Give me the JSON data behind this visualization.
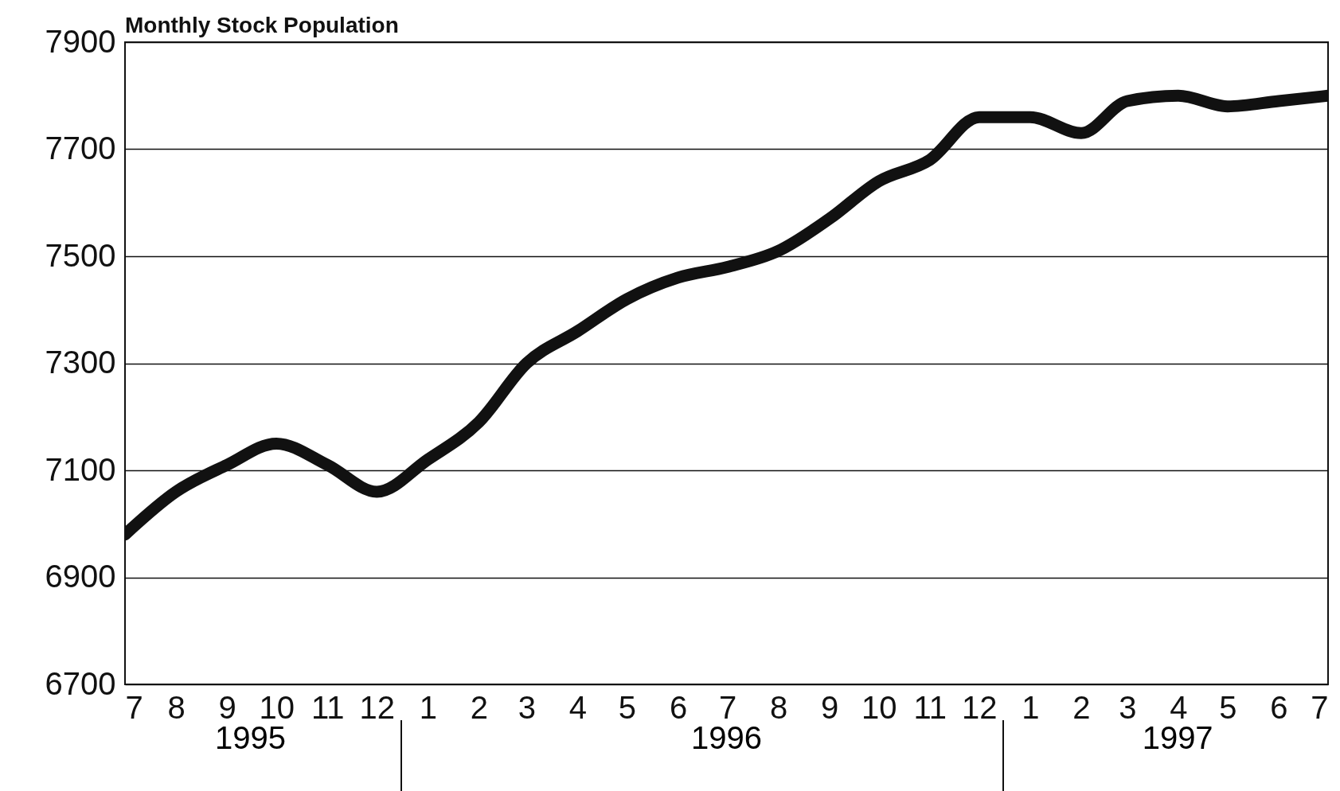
{
  "chart_data": {
    "type": "line",
    "title": "Monthly Stock Population",
    "x": [
      "1995-07",
      "1995-08",
      "1995-09",
      "1995-10",
      "1995-11",
      "1995-12",
      "1996-01",
      "1996-02",
      "1996-03",
      "1996-04",
      "1996-05",
      "1996-06",
      "1996-07",
      "1996-08",
      "1996-09",
      "1996-10",
      "1996-11",
      "1996-12",
      "1997-01",
      "1997-02",
      "1997-03",
      "1997-04",
      "1997-05",
      "1997-06",
      "1997-07"
    ],
    "series": [
      {
        "color": "#111111",
        "values": [
          6980,
          7060,
          7110,
          7150,
          7110,
          7060,
          7120,
          7190,
          7300,
          7360,
          7420,
          7460,
          7480,
          7510,
          7570,
          7640,
          7680,
          7760,
          7760,
          7730,
          7790,
          7800,
          7780,
          7790,
          7800
        ]
      }
    ],
    "xlim": [
      "1995-07",
      "1997-07"
    ],
    "xticks": [
      {
        "value": "1995-07",
        "label": "7"
      },
      {
        "value": "1995-08",
        "label": "8"
      },
      {
        "value": "1995-09",
        "label": "9"
      },
      {
        "value": "1995-10",
        "label": "10"
      },
      {
        "value": "1995-11",
        "label": "11"
      },
      {
        "value": "1995-12",
        "label": "12"
      },
      {
        "value": "1996-01",
        "label": "1"
      },
      {
        "value": "1996-02",
        "label": "2"
      },
      {
        "value": "1996-03",
        "label": "3"
      },
      {
        "value": "1996-04",
        "label": "4"
      },
      {
        "value": "1996-05",
        "label": "5"
      },
      {
        "value": "1996-06",
        "label": "6"
      },
      {
        "value": "1996-07",
        "label": "7"
      },
      {
        "value": "1996-08",
        "label": "8"
      },
      {
        "value": "1996-09",
        "label": "9"
      },
      {
        "value": "1996-10",
        "label": "10"
      },
      {
        "value": "1996-11",
        "label": "11"
      },
      {
        "value": "1996-12",
        "label": "12"
      },
      {
        "value": "1997-01",
        "label": "1"
      },
      {
        "value": "1997-02",
        "label": "2"
      },
      {
        "value": "1997-03",
        "label": "3"
      },
      {
        "value": "1997-04",
        "label": "4"
      },
      {
        "value": "1997-05",
        "label": "5"
      },
      {
        "value": "1997-06",
        "label": "6"
      },
      {
        "value": "1997-07",
        "label": "7"
      }
    ],
    "ylim": [
      6700,
      7900
    ],
    "yticks": [
      6700,
      6900,
      7100,
      7300,
      7500,
      7700,
      7900
    ],
    "grid": "y",
    "line_style": "solid",
    "annotations": [
      "1995",
      "1996",
      "1997"
    ]
  }
}
